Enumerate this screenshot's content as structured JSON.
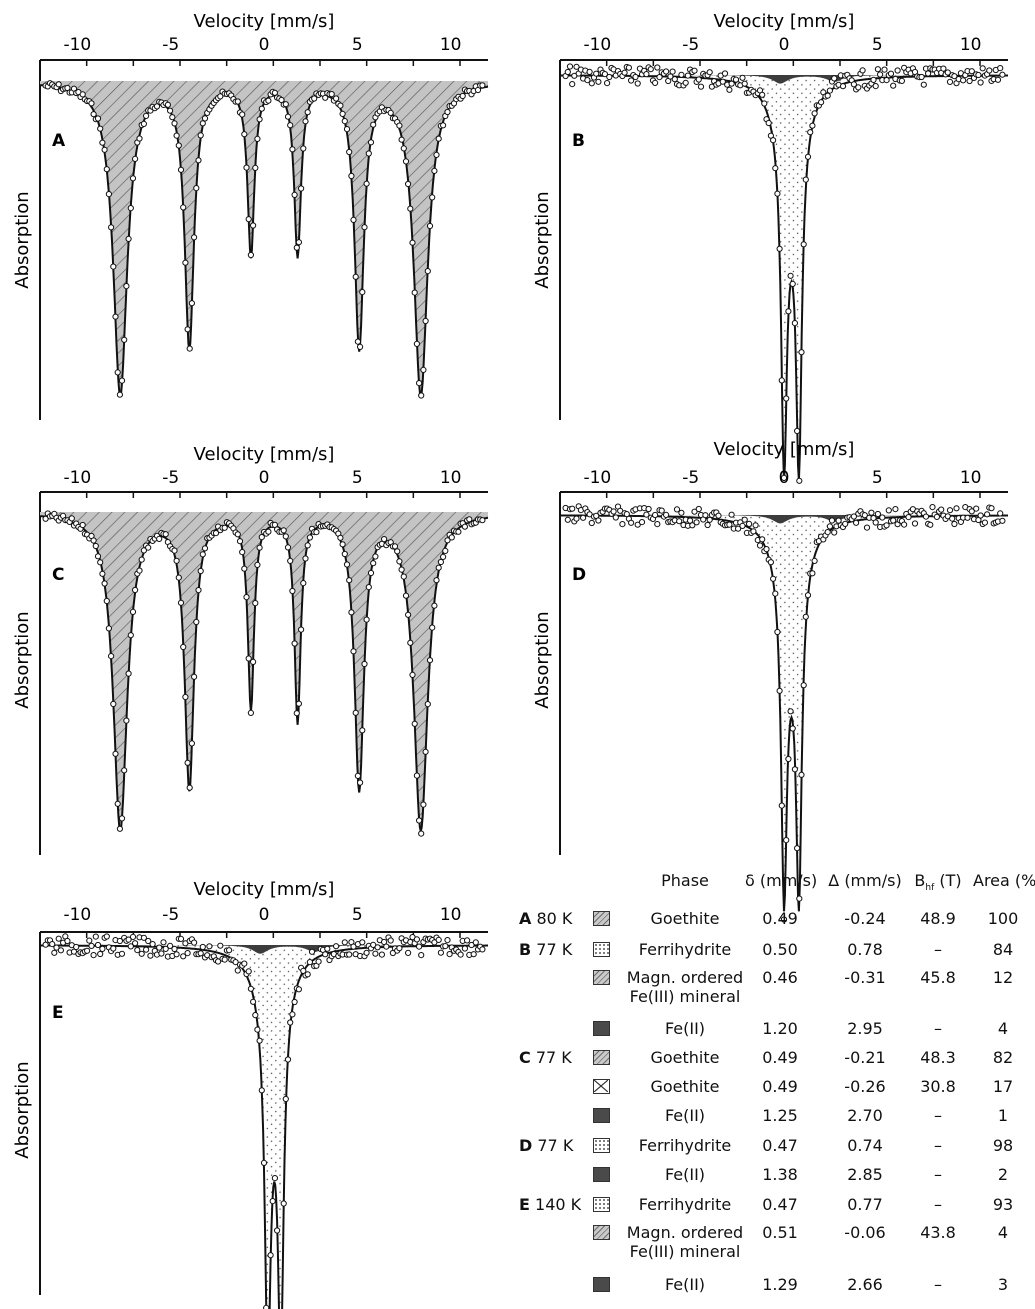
{
  "chart_data": [
    {
      "panel": "A",
      "type": "line",
      "xlabel": "Velocity [mm/s]",
      "ylabel": "Absorption",
      "xlim": [
        -12,
        12
      ],
      "x_ticks": [
        "-10",
        "-5",
        "0",
        "5",
        "10"
      ],
      "fill": "hatch",
      "lines": [
        {
          "pos": -7.7,
          "depth": 0.95,
          "width": 0.45
        },
        {
          "pos": -4.0,
          "depth": 0.8,
          "width": 0.3
        },
        {
          "pos": -0.7,
          "depth": 0.52,
          "width": 0.22
        },
        {
          "pos": 1.8,
          "depth": 0.52,
          "width": 0.22
        },
        {
          "pos": 5.1,
          "depth": 0.8,
          "width": 0.3
        },
        {
          "pos": 8.4,
          "depth": 0.95,
          "width": 0.45
        }
      ]
    },
    {
      "panel": "B",
      "type": "line",
      "xlabel": "Velocity [mm/s]",
      "ylabel": "Absorption",
      "xlim": [
        -12,
        12
      ],
      "x_ticks": [
        "-10",
        "-5",
        "0",
        "5",
        "10"
      ],
      "fill": "dots",
      "lines": [
        {
          "pos": 0.0,
          "depth": 0.94,
          "width": 0.18
        },
        {
          "pos": 0.8,
          "depth": 0.94,
          "width": 0.18
        },
        {
          "pos": 0.4,
          "depth": 0.3,
          "width": 0.7
        }
      ]
    },
    {
      "panel": "C",
      "type": "line",
      "xlabel": "Velocity [mm/s]",
      "ylabel": "Absorption",
      "xlim": [
        -12,
        12
      ],
      "x_ticks": [
        "-10",
        "-5",
        "0",
        "5",
        "10"
      ],
      "fill": "hatch",
      "lines": [
        {
          "pos": -7.7,
          "depth": 0.95,
          "width": 0.45
        },
        {
          "pos": -4.0,
          "depth": 0.82,
          "width": 0.3
        },
        {
          "pos": -0.7,
          "depth": 0.58,
          "width": 0.2
        },
        {
          "pos": 1.8,
          "depth": 0.62,
          "width": 0.2
        },
        {
          "pos": 5.1,
          "depth": 0.82,
          "width": 0.3
        },
        {
          "pos": 8.4,
          "depth": 0.95,
          "width": 0.45
        }
      ]
    },
    {
      "panel": "D",
      "type": "line",
      "xlabel": "Velocity [mm/s]",
      "ylabel": "Absorption",
      "xlim": [
        -12,
        12
      ],
      "x_ticks": [
        "-10",
        "-5",
        "0",
        "5",
        "10"
      ],
      "fill": "dots",
      "lines": [
        {
          "pos": 0.0,
          "depth": 0.93,
          "width": 0.18
        },
        {
          "pos": 0.8,
          "depth": 0.93,
          "width": 0.18
        },
        {
          "pos": 0.4,
          "depth": 0.3,
          "width": 0.7
        }
      ]
    },
    {
      "panel": "E",
      "type": "line",
      "xlabel": "Velocity [mm/s]",
      "ylabel": "Absorption",
      "xlim": [
        -12,
        12
      ],
      "x_ticks": [
        "-10",
        "-5",
        "0",
        "5",
        "10"
      ],
      "fill": "dots",
      "lines": [
        {
          "pos": 0.2,
          "depth": 0.95,
          "width": 0.18
        },
        {
          "pos": 0.9,
          "depth": 0.95,
          "width": 0.18
        },
        {
          "pos": 0.5,
          "depth": 0.3,
          "width": 0.7
        }
      ]
    },
    {
      "type": "table",
      "columns": [
        "Phase",
        "δ (mm/s)",
        "Δ (mm/s)",
        "B_hf (T)",
        "Area (%)"
      ],
      "rows": [
        {
          "sample": "A",
          "temp": "80 K",
          "swatch": "hatch",
          "phase": "Goethite",
          "delta": "0.49",
          "Delta": "-0.24",
          "bhf": "48.9",
          "area": "100"
        },
        {
          "sample": "B",
          "temp": "77 K",
          "swatch": "dot",
          "phase": "Ferrihydrite",
          "delta": "0.50",
          "Delta": "0.78",
          "bhf": "–",
          "area": "84"
        },
        {
          "sample": "",
          "temp": "",
          "swatch": "hatch",
          "phase": "Magn. ordered",
          "phase2": "Fe(III) mineral",
          "delta": "0.46",
          "Delta": "-0.31",
          "bhf": "45.8",
          "area": "12"
        },
        {
          "sample": "",
          "temp": "",
          "swatch": "dark",
          "phase": "Fe(II)",
          "delta": "1.20",
          "Delta": "2.95",
          "bhf": "–",
          "area": "4"
        },
        {
          "sample": "C",
          "temp": "77 K",
          "swatch": "hatch",
          "phase": "Goethite",
          "delta": "0.49",
          "Delta": "-0.21",
          "bhf": "48.3",
          "area": "82"
        },
        {
          "sample": "",
          "temp": "",
          "swatch": "cross",
          "phase": "Goethite",
          "delta": "0.49",
          "Delta": "-0.26",
          "bhf": "30.8",
          "area": "17"
        },
        {
          "sample": "",
          "temp": "",
          "swatch": "dark",
          "phase": "Fe(II)",
          "delta": "1.25",
          "Delta": "2.70",
          "bhf": "–",
          "area": "1"
        },
        {
          "sample": "D",
          "temp": "77 K",
          "swatch": "dot",
          "phase": "Ferrihydrite",
          "delta": "0.47",
          "Delta": "0.74",
          "bhf": "–",
          "area": "98"
        },
        {
          "sample": "",
          "temp": "",
          "swatch": "dark",
          "phase": "Fe(II)",
          "delta": "1.38",
          "Delta": "2.85",
          "bhf": "–",
          "area": "2"
        },
        {
          "sample": "E",
          "temp": "140 K",
          "swatch": "dot",
          "phase": "Ferrihydrite",
          "delta": "0.47",
          "Delta": "0.77",
          "bhf": "–",
          "area": "93"
        },
        {
          "sample": "",
          "temp": "",
          "swatch": "hatch",
          "phase": "Magn. ordered",
          "phase2": "Fe(III) mineral",
          "delta": "0.51",
          "Delta": "-0.06",
          "bhf": "43.8",
          "area": "4"
        },
        {
          "sample": "",
          "temp": "",
          "swatch": "dark",
          "phase": "Fe(II)",
          "delta": "1.29",
          "Delta": "2.66",
          "bhf": "–",
          "area": "3"
        }
      ]
    }
  ]
}
